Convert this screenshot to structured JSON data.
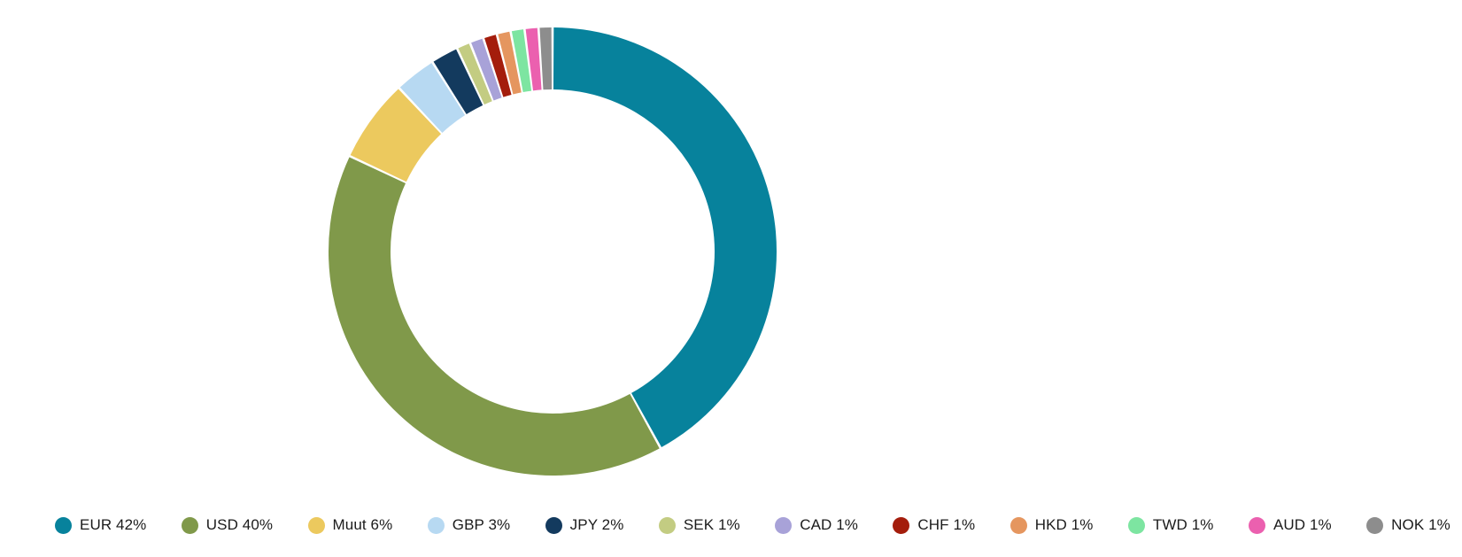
{
  "chart_data": {
    "type": "pie",
    "subtype": "donut",
    "title": "",
    "unit": "%",
    "categories": [
      "EUR",
      "USD",
      "Muut",
      "GBP",
      "JPY",
      "SEK",
      "CAD",
      "CHF",
      "HKD",
      "TWD",
      "AUD",
      "NOK"
    ],
    "values": [
      42,
      40,
      6,
      3,
      2,
      1,
      1,
      1,
      1,
      1,
      1,
      1
    ],
    "colors": [
      "#07829c",
      "#80994a",
      "#ecc95e",
      "#b7d9f2",
      "#133a5e",
      "#c3cc82",
      "#a8a2d8",
      "#a41d0c",
      "#e5965f",
      "#7de5a1",
      "#eb60af",
      "#8d8d8d"
    ],
    "legend_labels": [
      "EUR 42%",
      "USD 40%",
      "Muut 6%",
      "GBP 3%",
      "JPY 2%",
      "SEK 1%",
      "CAD 1%",
      "CHF 1%",
      "HKD 1%",
      "TWD 1%",
      "AUD 1%",
      "NOK 1%"
    ],
    "legend_position": "bottom",
    "start_angle_deg": 0,
    "direction": "clockwise",
    "donut_hole_ratio": 0.72,
    "separator_color": "#ffffff",
    "background": "#ffffff"
  }
}
